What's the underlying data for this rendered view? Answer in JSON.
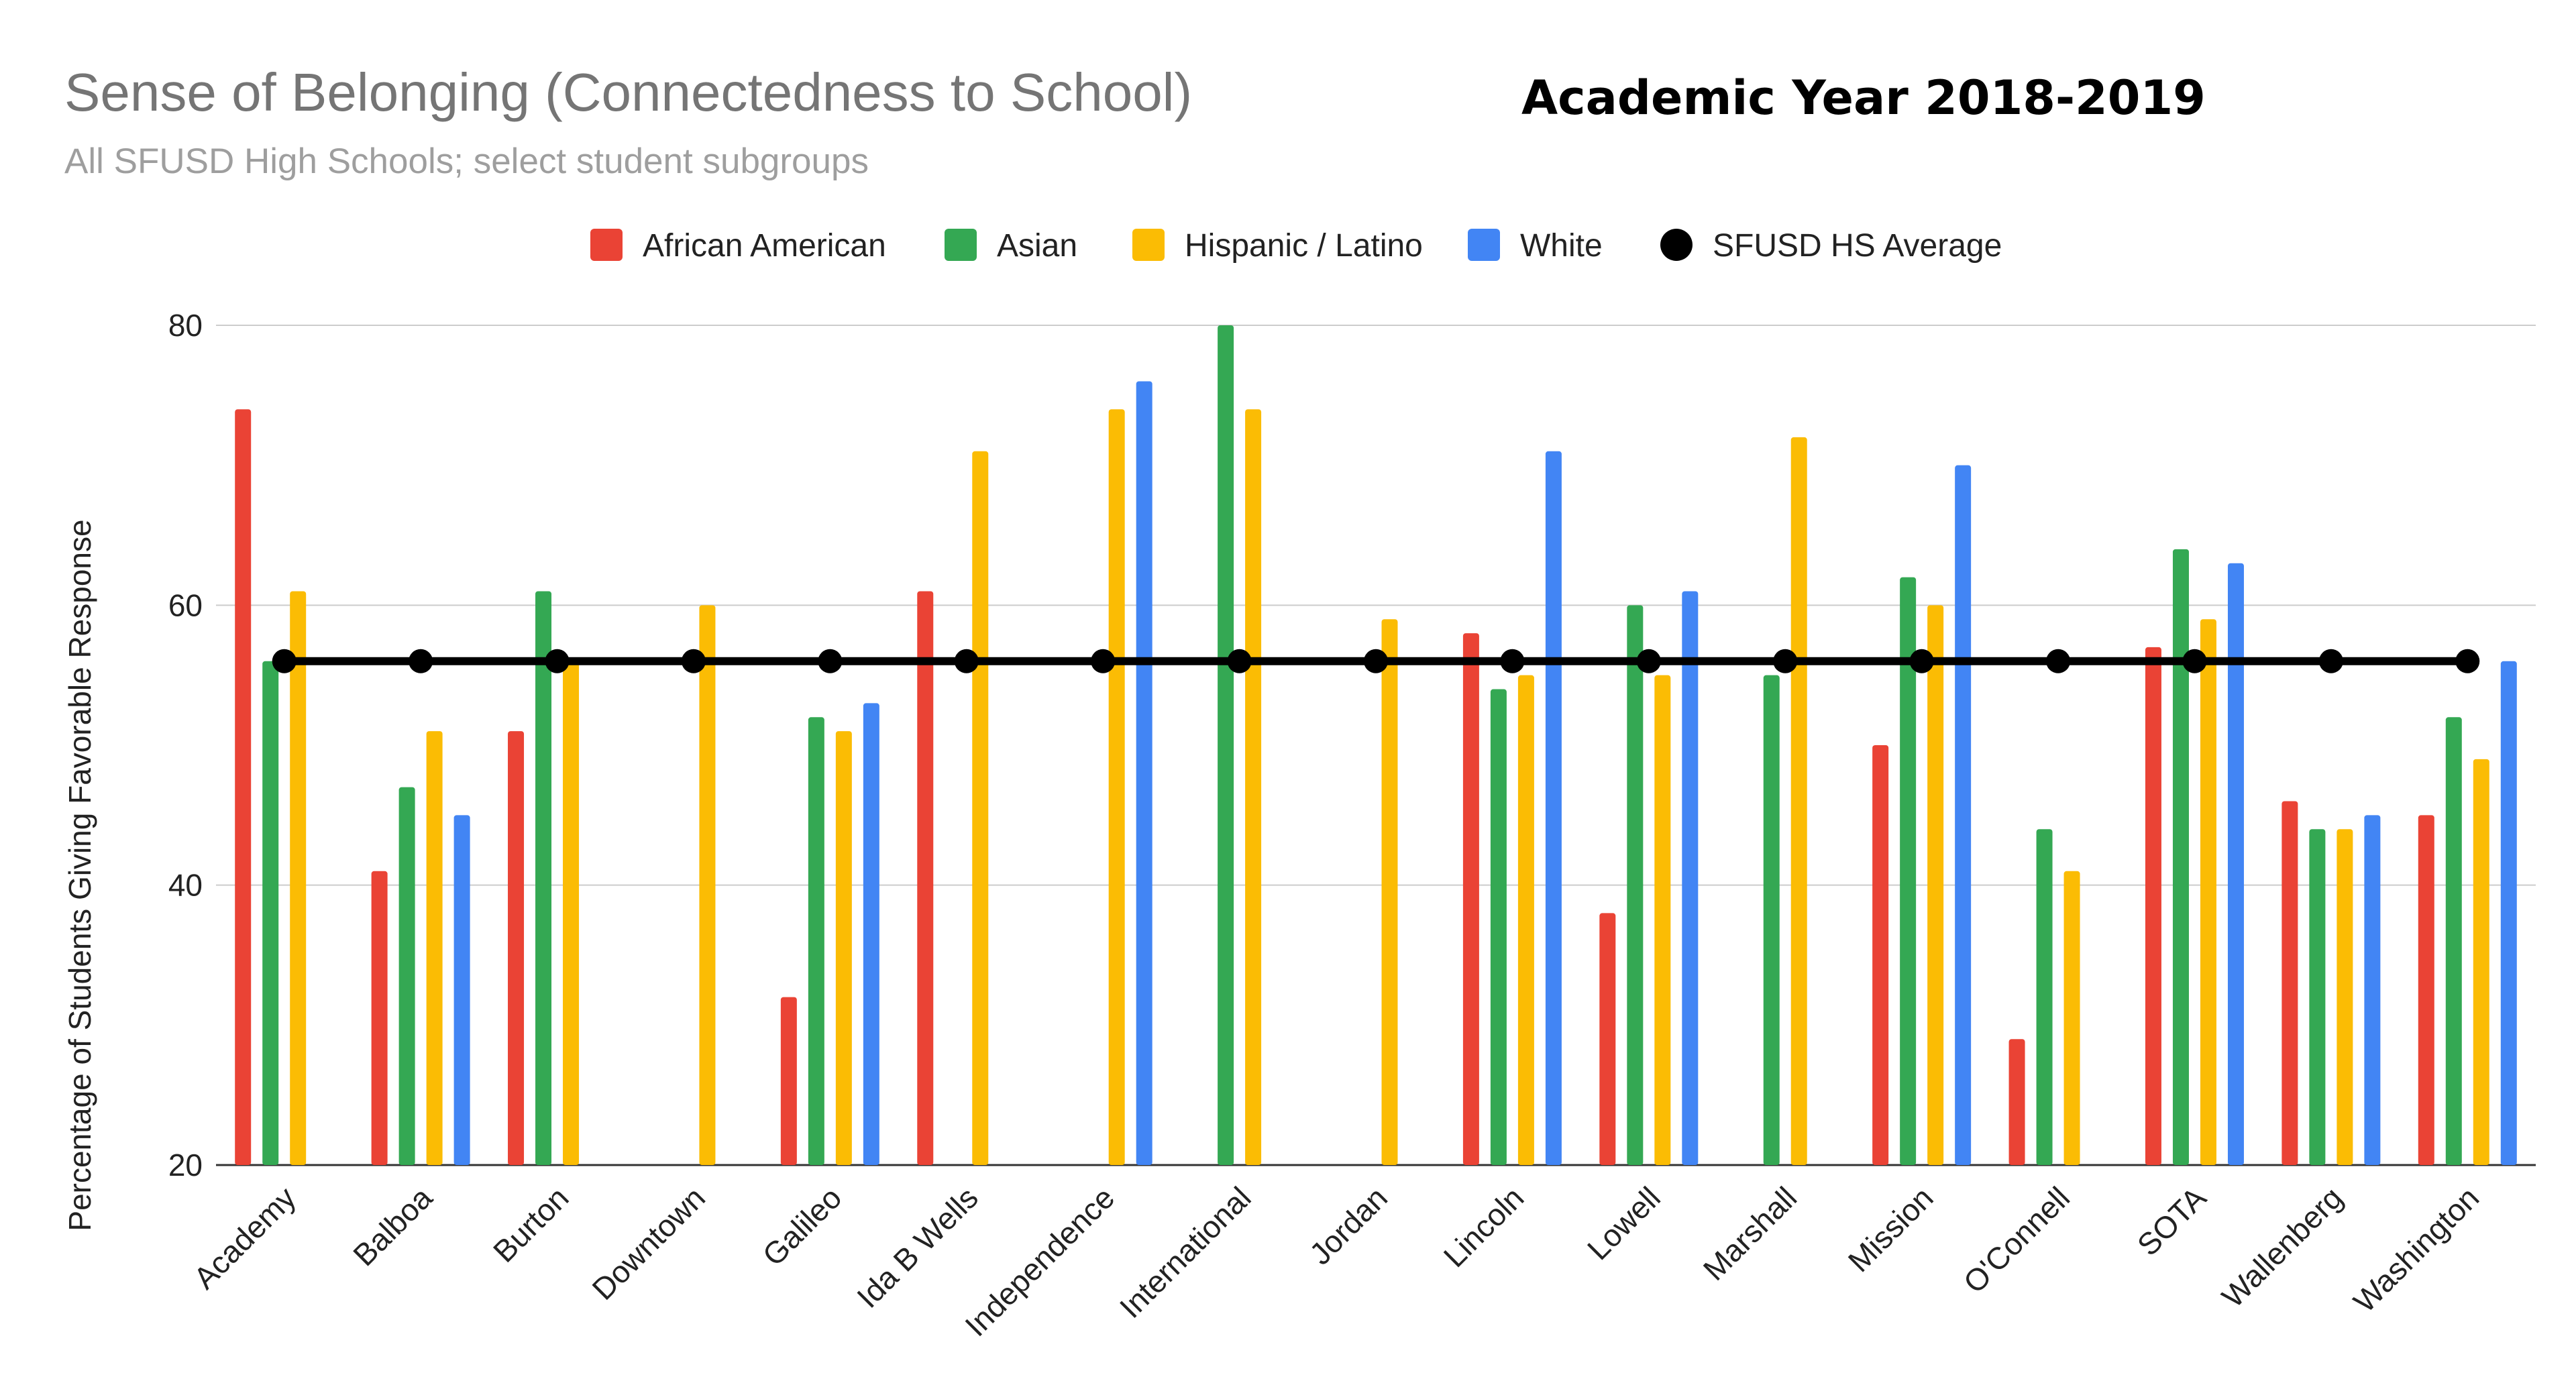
{
  "chart_data": {
    "type": "bar",
    "title": "Sense of Belonging (Connectedness to School)",
    "subtitle": "All SFUSD High Schools; select student subgroups",
    "header_note": "Academic Year 2018-2019",
    "ylabel": "Percentage of Students Giving Favorable Response",
    "xlabel": "",
    "ylim": [
      20,
      80
    ],
    "yticks": [
      20,
      40,
      60,
      80
    ],
    "grid": true,
    "legend_position": "top",
    "categories": [
      "Academy",
      "Balboa",
      "Burton",
      "Downtown",
      "Galileo",
      "Ida B Wells",
      "Independence",
      "International",
      "Jordan",
      "Lincoln",
      "Lowell",
      "Marshall",
      "Mission",
      "O'Connell",
      "SOTA",
      "Wallenberg",
      "Washington"
    ],
    "series": [
      {
        "name": "African American",
        "color": "#ea4335",
        "values": [
          74,
          41,
          51,
          null,
          32,
          61,
          null,
          null,
          null,
          58,
          38,
          null,
          50,
          29,
          57,
          46,
          45
        ]
      },
      {
        "name": "Asian",
        "color": "#34a853",
        "values": [
          56,
          47,
          61,
          null,
          52,
          null,
          null,
          80,
          null,
          54,
          60,
          55,
          62,
          44,
          64,
          44,
          52
        ]
      },
      {
        "name": "Hispanic / Latino",
        "color": "#fbbc04",
        "values": [
          61,
          51,
          56,
          60,
          51,
          71,
          74,
          74,
          59,
          55,
          55,
          72,
          60,
          41,
          59,
          44,
          49
        ]
      },
      {
        "name": "White",
        "color": "#4285f4",
        "values": [
          null,
          45,
          null,
          null,
          53,
          null,
          76,
          null,
          null,
          71,
          61,
          null,
          70,
          null,
          63,
          45,
          56
        ]
      }
    ],
    "average_line": {
      "name": "SFUSD HS Average",
      "color": "#000000",
      "value": 56
    }
  }
}
